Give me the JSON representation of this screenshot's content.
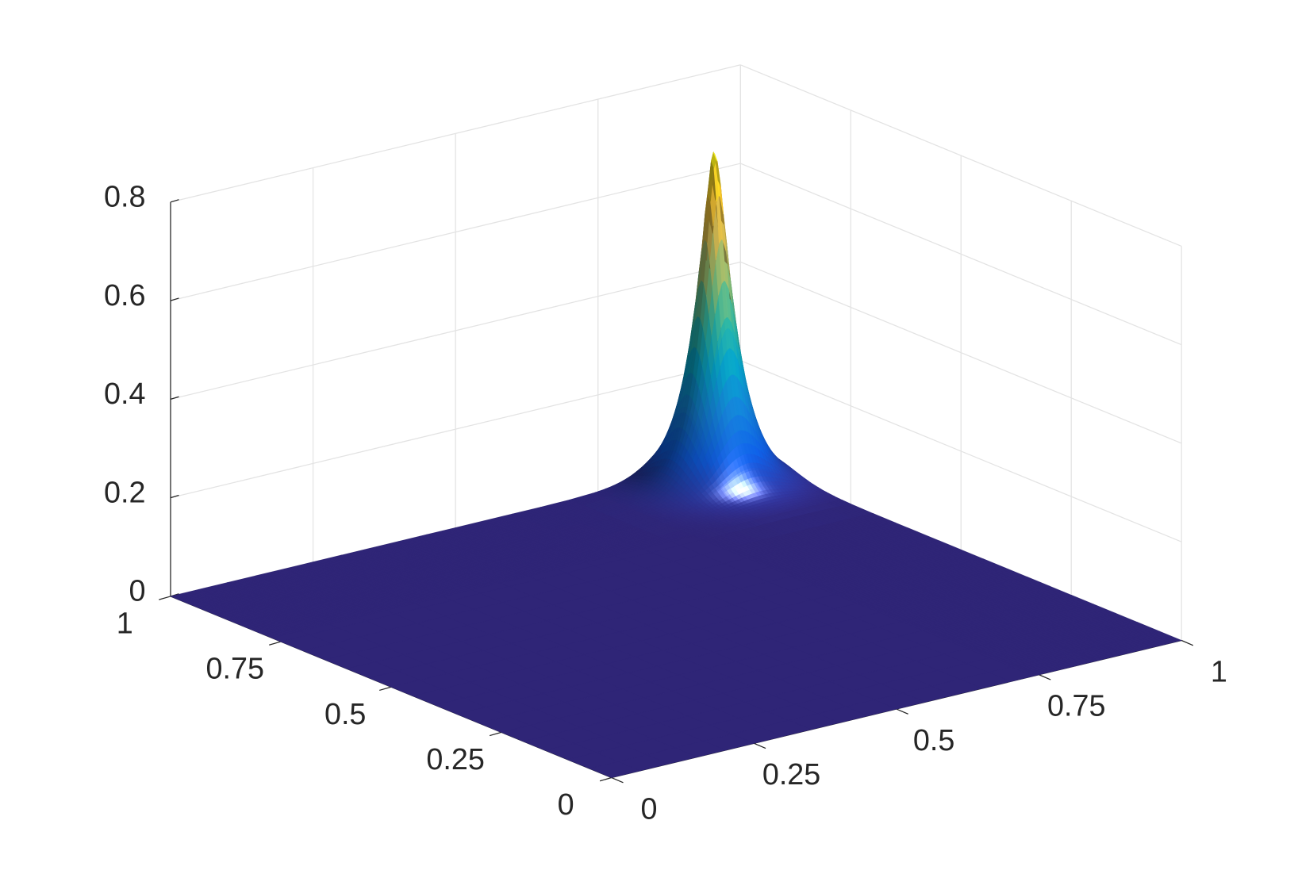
{
  "chart_data": {
    "type": "surface",
    "xlim": [
      0,
      1
    ],
    "ylim": [
      0,
      1
    ],
    "zlim": [
      0,
      0.8
    ],
    "xticks": [
      0,
      0.25,
      0.5,
      0.75,
      1
    ],
    "yticks": [
      0,
      0.25,
      0.5,
      0.75,
      1
    ],
    "zticks": [
      0,
      0.2,
      0.4,
      0.6,
      0.8
    ],
    "grid": true,
    "surface": {
      "center_x": 0.9,
      "center_y": 0.93,
      "height": 0.68,
      "width": 0.03
    },
    "colormap": [
      "#352a87",
      "#0f5cdd",
      "#1481d6",
      "#06a4ca",
      "#2eb7a4",
      "#87bf77",
      "#d1bb59",
      "#fec832",
      "#f9fb0e"
    ]
  }
}
